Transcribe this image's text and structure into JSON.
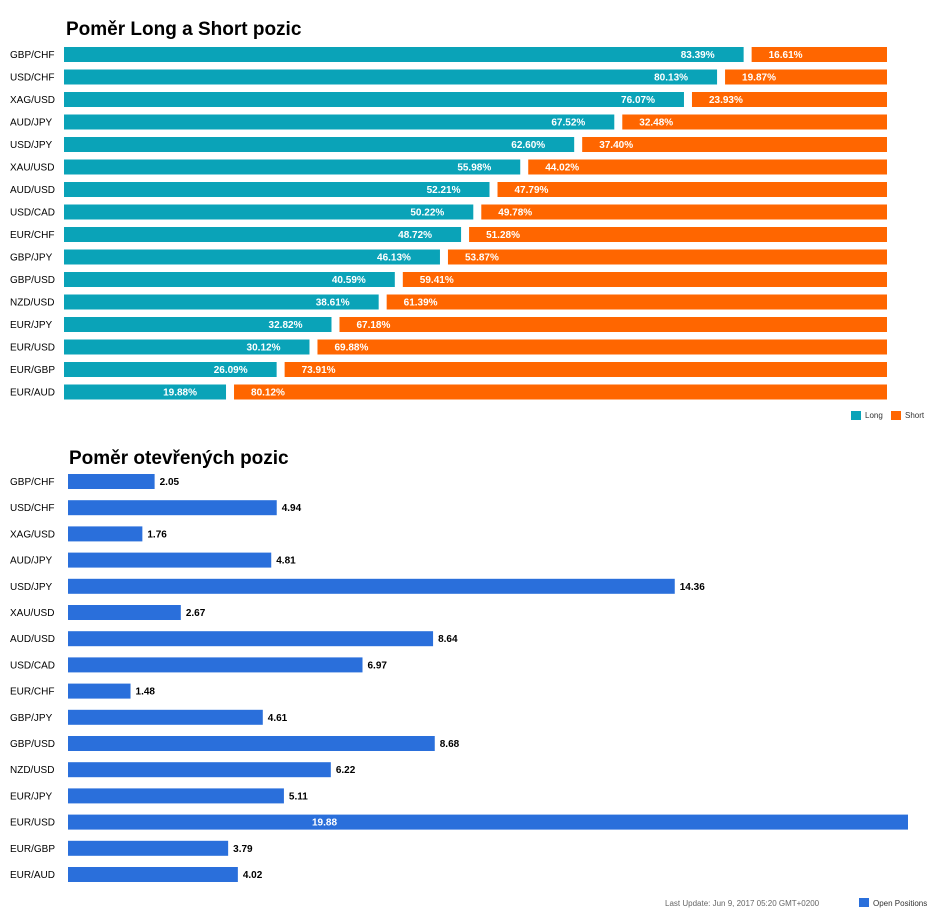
{
  "chart_data": [
    {
      "type": "bar",
      "stacked": true,
      "orientation": "horizontal",
      "title": "Poměr Long a Short pozic",
      "categories": [
        "GBP/CHF",
        "USD/CHF",
        "XAG/USD",
        "AUD/JPY",
        "USD/JPY",
        "XAU/USD",
        "AUD/USD",
        "USD/CAD",
        "EUR/CHF",
        "GBP/JPY",
        "GBP/USD",
        "NZD/USD",
        "EUR/JPY",
        "EUR/USD",
        "EUR/GBP",
        "EUR/AUD"
      ],
      "series": [
        {
          "name": "Long",
          "color": "#0aa3b8",
          "values": [
            83.39,
            80.13,
            76.07,
            67.52,
            62.6,
            55.98,
            52.21,
            50.22,
            48.72,
            46.13,
            40.59,
            38.61,
            32.82,
            30.12,
            26.09,
            19.88
          ],
          "labels": [
            "83.39%",
            "80.13%",
            "76.07%",
            "67.52%",
            "62.60%",
            "55.98%",
            "52.21%",
            "50.22%",
            "48.72%",
            "46.13%",
            "40.59%",
            "38.61%",
            "32.82%",
            "30.12%",
            "26.09%",
            "19.88%"
          ]
        },
        {
          "name": "Short",
          "color": "#ff6600",
          "values": [
            16.61,
            19.87,
            23.93,
            32.48,
            37.4,
            44.02,
            47.79,
            49.78,
            51.28,
            53.87,
            59.41,
            61.39,
            67.18,
            69.88,
            73.91,
            80.12
          ],
          "labels": [
            "16.61%",
            "19.87%",
            "23.93%",
            "32.48%",
            "37.40%",
            "44.02%",
            "47.79%",
            "49.78%",
            "51.28%",
            "53.87%",
            "59.41%",
            "61.39%",
            "67.18%",
            "69.88%",
            "73.91%",
            "80.12%"
          ]
        }
      ],
      "xlim": [
        0,
        100
      ],
      "legend": "bottom-right"
    },
    {
      "type": "bar",
      "orientation": "horizontal",
      "title": "Poměr otevřených pozic",
      "categories": [
        "GBP/CHF",
        "USD/CHF",
        "XAG/USD",
        "AUD/JPY",
        "USD/JPY",
        "XAU/USD",
        "AUD/USD",
        "USD/CAD",
        "EUR/CHF",
        "GBP/JPY",
        "GBP/USD",
        "NZD/USD",
        "EUR/JPY",
        "EUR/USD",
        "EUR/GBP",
        "EUR/AUD"
      ],
      "series": [
        {
          "name": "Open Positions",
          "color": "#2a6fdb",
          "values": [
            2.05,
            4.94,
            1.76,
            4.81,
            14.36,
            2.67,
            8.64,
            6.97,
            1.48,
            4.61,
            8.68,
            6.22,
            5.11,
            19.88,
            3.79,
            4.02
          ],
          "labels": [
            "2.05",
            "4.94",
            "1.76",
            "4.81",
            "14.36",
            "2.67",
            "8.64",
            "6.97",
            "1.48",
            "4.61",
            "8.68",
            "6.22",
            "5.11",
            "19.88",
            "3.79",
            "4.02"
          ]
        }
      ],
      "xlim": [
        0,
        19.88
      ],
      "legend": "bottom-right",
      "footer": "Last Update: Jun 9, 2017 05:20 GMT+0200"
    }
  ]
}
